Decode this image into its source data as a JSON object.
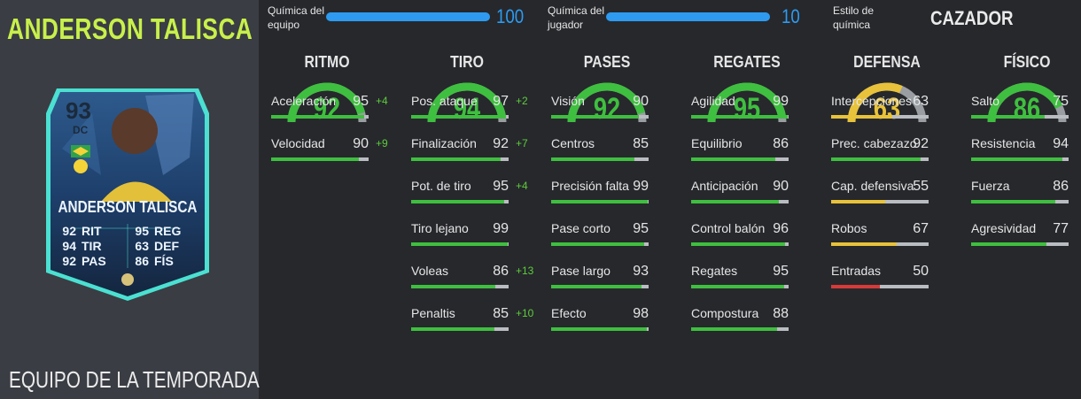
{
  "player": {
    "name": "ANDERSON TALISCA",
    "team_label": "EQUIPO DE LA TEMPORADA"
  },
  "card": {
    "rating": "93",
    "position": "DC",
    "name": "ANDERSON TALISCA",
    "stats": [
      {
        "value": "92",
        "label": "RIT"
      },
      {
        "value": "94",
        "label": "TIR"
      },
      {
        "value": "92",
        "label": "PAS"
      },
      {
        "value": "95",
        "label": "REG"
      },
      {
        "value": "63",
        "label": "DEF"
      },
      {
        "value": "86",
        "label": "FÍS"
      }
    ]
  },
  "chemistry": {
    "team_label_1": "Química del",
    "team_label_2": "equipo",
    "team_value": "100",
    "player_label_1": "Química del",
    "player_label_2": "jugador",
    "player_value": "10",
    "style_label_1": "Estilo de",
    "style_label_2": "química",
    "style_value": "CAZADOR",
    "team_fraction": 1.0,
    "player_fraction": 1.0
  },
  "colors": {
    "high": "#3fbf3f",
    "mid": "#e8c23a",
    "low": "#d63a3a",
    "accent": "#2e9bf0"
  },
  "categories": [
    {
      "title": "RITMO",
      "value": "92",
      "color": "#3fbf3f",
      "attrs": [
        {
          "name": "Aceleración",
          "value": "95",
          "bonus": "+4"
        },
        {
          "name": "Velocidad",
          "value": "90",
          "bonus": "+9"
        }
      ]
    },
    {
      "title": "TIRO",
      "value": "94",
      "color": "#3fbf3f",
      "attrs": [
        {
          "name": "Pos. ataque",
          "value": "97",
          "bonus": "+2"
        },
        {
          "name": "Finalización",
          "value": "92",
          "bonus": "+7"
        },
        {
          "name": "Pot. de tiro",
          "value": "95",
          "bonus": "+4"
        },
        {
          "name": "Tiro lejano",
          "value": "99",
          "bonus": ""
        },
        {
          "name": "Voleas",
          "value": "86",
          "bonus": "+13"
        },
        {
          "name": "Penaltis",
          "value": "85",
          "bonus": "+10"
        }
      ]
    },
    {
      "title": "PASES",
      "value": "92",
      "color": "#3fbf3f",
      "attrs": [
        {
          "name": "Visión",
          "value": "90",
          "bonus": ""
        },
        {
          "name": "Centros",
          "value": "85",
          "bonus": ""
        },
        {
          "name": "Precisión falta",
          "value": "99",
          "bonus": ""
        },
        {
          "name": "Pase corto",
          "value": "95",
          "bonus": ""
        },
        {
          "name": "Pase largo",
          "value": "93",
          "bonus": ""
        },
        {
          "name": "Efecto",
          "value": "98",
          "bonus": ""
        }
      ]
    },
    {
      "title": "REGATES",
      "value": "95",
      "color": "#3fbf3f",
      "attrs": [
        {
          "name": "Agilidad",
          "value": "99",
          "bonus": ""
        },
        {
          "name": "Equilibrio",
          "value": "86",
          "bonus": ""
        },
        {
          "name": "Anticipación",
          "value": "90",
          "bonus": ""
        },
        {
          "name": "Control balón",
          "value": "96",
          "bonus": ""
        },
        {
          "name": "Regates",
          "value": "95",
          "bonus": ""
        },
        {
          "name": "Compostura",
          "value": "88",
          "bonus": ""
        }
      ]
    },
    {
      "title": "DEFENSA",
      "value": "63",
      "color": "#e8c23a",
      "attrs": [
        {
          "name": "Intercepciones",
          "value": "63",
          "bonus": ""
        },
        {
          "name": "Prec. cabezazo",
          "value": "92",
          "bonus": ""
        },
        {
          "name": "Cap. defensiva",
          "value": "55",
          "bonus": ""
        },
        {
          "name": "Robos",
          "value": "67",
          "bonus": ""
        },
        {
          "name": "Entradas",
          "value": "50",
          "bonus": ""
        }
      ]
    },
    {
      "title": "FÍSICO",
      "value": "86",
      "color": "#3fbf3f",
      "attrs": [
        {
          "name": "Salto",
          "value": "75",
          "bonus": ""
        },
        {
          "name": "Resistencia",
          "value": "94",
          "bonus": ""
        },
        {
          "name": "Fuerza",
          "value": "86",
          "bonus": ""
        },
        {
          "name": "Agresividad",
          "value": "77",
          "bonus": ""
        }
      ]
    }
  ]
}
